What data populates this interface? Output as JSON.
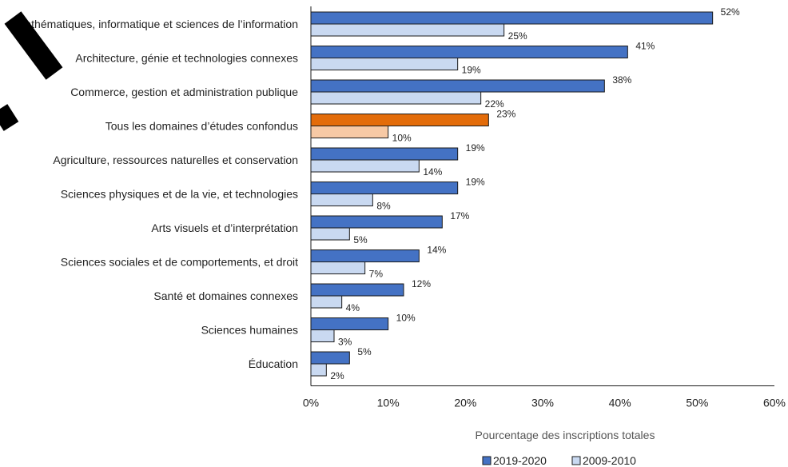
{
  "chart_data": {
    "type": "bar",
    "orientation": "horizontal",
    "categories": [
      "Mathématiques, informatique et sciences de l’information",
      "Architecture, génie et technologies connexes",
      "Commerce, gestion et administration publique",
      "Tous les domaines d’études confondus",
      "Agriculture, ressources naturelles et conservation",
      "Sciences physiques et de la vie, et technologies",
      "Arts visuels et d’interprétation",
      "Sciences sociales et de comportements, et droit",
      "Santé et domaines connexes",
      "Sciences humaines",
      "Éducation"
    ],
    "series": [
      {
        "name": "2019-2020",
        "values": [
          52,
          41,
          38,
          23,
          19,
          19,
          17,
          14,
          12,
          10,
          5
        ]
      },
      {
        "name": "2009-2010",
        "values": [
          25,
          19,
          22,
          10,
          14,
          8,
          5,
          7,
          4,
          3,
          2
        ]
      }
    ],
    "value_labels": [
      [
        "52%",
        "41%",
        "38%",
        "23%",
        "19%",
        "19%",
        "17%",
        "14%",
        "12%",
        "10%",
        "5%"
      ],
      [
        "25%",
        "19%",
        "22%",
        "10%",
        "14%",
        "8%",
        "5%",
        "7%",
        "4%",
        "3%",
        "2%"
      ]
    ],
    "highlight_category_index": 3,
    "colors": {
      "series_2019": "#4472c4",
      "series_2009": "#c9d9f1",
      "highlight_2019": "#e36c0a",
      "highlight_2009": "#f7c9a5",
      "bar_border": "#1a1a1a"
    },
    "xlabel": "Pourcentage des inscriptions totales",
    "xlim": [
      0,
      60
    ],
    "xticks": [
      0,
      10,
      20,
      30,
      40,
      50,
      60
    ],
    "xtick_labels": [
      "0%",
      "10%",
      "20%",
      "30%",
      "40%",
      "50%",
      "60%"
    ],
    "grid": false,
    "legend_position": "bottom",
    "legend": [
      "2019-2020",
      "2009-2010"
    ]
  }
}
